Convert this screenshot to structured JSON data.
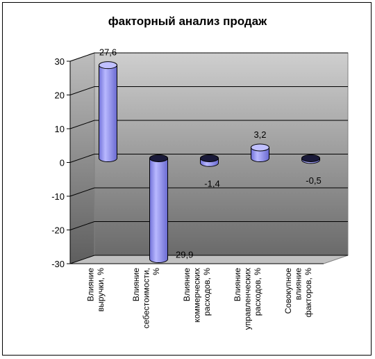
{
  "chart_data": {
    "type": "bar",
    "title": "факторный анализ продаж",
    "categories": [
      [
        "Влияние",
        "выручки, %"
      ],
      [
        "Влияние",
        "себестоимости,",
        "%"
      ],
      [
        "Влияние",
        "коммерческих",
        "расходов, %"
      ],
      [
        "Влияние",
        "управленческих",
        "расходов, %"
      ],
      [
        "Совокупное",
        "влияние",
        "факторов, %"
      ]
    ],
    "values": [
      27.6,
      -29.9,
      -1.4,
      3.2,
      -0.5
    ],
    "data_labels": [
      "27,6",
      "-29,9",
      "-1,4",
      "3,2",
      "-0,5"
    ],
    "y_ticks": [
      "30",
      "20",
      "10",
      "0",
      "-10",
      "-20",
      "-30"
    ],
    "ylim": [
      -30,
      30
    ],
    "grid": true,
    "legend": "none",
    "colors": {
      "bar_fill": "#9999ff",
      "bar_top": "#c0c0ff",
      "bar_stroke": "#000000",
      "wall_light": "#c8c8c8",
      "wall_dark": "#6e6e6e",
      "floor": "#c0c0c0"
    }
  }
}
